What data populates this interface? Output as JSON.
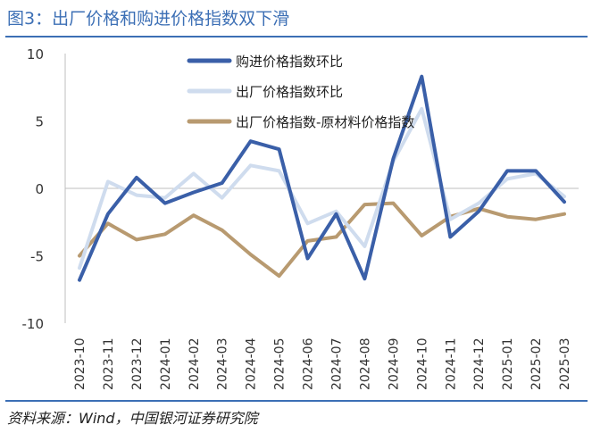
{
  "title": "图3：出厂价格和购进价格指数双下滑",
  "source": "资料来源：Wind，中国银河证券研究院",
  "chart_data": {
    "type": "line",
    "categories": [
      "2023-10",
      "2023-11",
      "2023-12",
      "2024-01",
      "2024-02",
      "2024-03",
      "2024-04",
      "2024-05",
      "2024-06",
      "2024-07",
      "2024-08",
      "2024-09",
      "2024-10",
      "2024-11",
      "2024-12",
      "2025-01",
      "2025-02",
      "2025-03"
    ],
    "yticks": [
      "10",
      "5",
      "0",
      "-5",
      "-10"
    ],
    "ylim": [
      -10,
      10
    ],
    "grid": false,
    "legend_position": "top",
    "series": [
      {
        "name": "购进价格指数环比",
        "color": "#3a5fa8",
        "width": 4,
        "values": [
          -6.8,
          -1.9,
          0.8,
          -1.1,
          -0.3,
          0.4,
          3.5,
          2.9,
          -5.2,
          -1.9,
          -6.7,
          2.2,
          8.3,
          -3.6,
          -1.7,
          1.3,
          1.3,
          -1.0
        ]
      },
      {
        "name": "出厂价格指数环比",
        "color": "#cfdcee",
        "width": 4,
        "values": [
          -5.9,
          0.5,
          -0.5,
          -0.7,
          1.1,
          -0.7,
          1.7,
          1.3,
          -2.6,
          -1.7,
          -4.3,
          2.0,
          5.9,
          -2.3,
          -1.1,
          0.7,
          1.1,
          -0.6
        ]
      },
      {
        "name": "出厂价格指数-原材料价格指数",
        "color": "#b89a70",
        "width": 4,
        "values": [
          -5.0,
          -2.6,
          -3.8,
          -3.4,
          -2.0,
          -3.1,
          -4.9,
          -6.5,
          -3.9,
          -3.6,
          -1.2,
          -1.1,
          -3.5,
          -2.1,
          -1.5,
          -2.1,
          -2.3,
          -1.9
        ]
      }
    ]
  }
}
